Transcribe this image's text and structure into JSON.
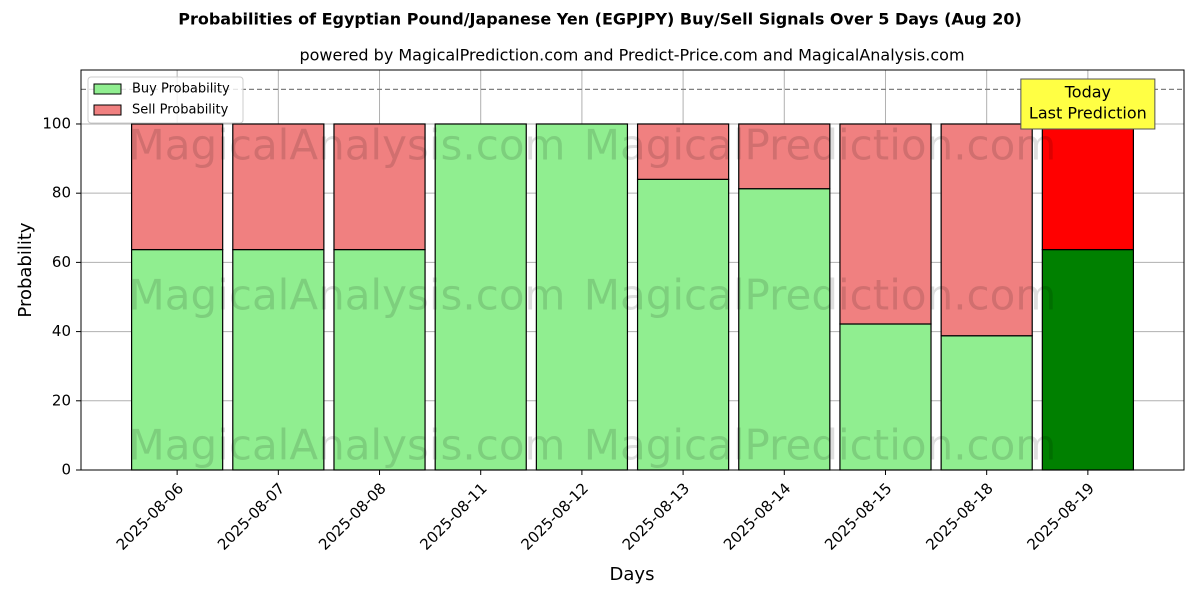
{
  "chart_data": {
    "type": "stacked_bar",
    "title": "Probabilities of Egyptian Pound/Japanese Yen (EGPJPY) Buy/Sell Signals Over 5 Days (Aug 20)",
    "subtitle": "powered by MagicalPrediction.com and Predict-Price.com and MagicalAnalysis.com",
    "xlabel": "Days",
    "ylabel": "Probability",
    "categories": [
      "2025-08-06",
      "2025-08-07",
      "2025-08-08",
      "2025-08-11",
      "2025-08-12",
      "2025-08-13",
      "2025-08-14",
      "2025-08-15",
      "2025-08-18",
      "2025-08-19"
    ],
    "series": [
      {
        "name": "Buy Probability",
        "color": "#90ee90",
        "values": [
          63.7,
          63.7,
          63.7,
          100,
          100,
          84,
          81.3,
          42.2,
          38.8,
          63.7
        ]
      },
      {
        "name": "Sell Probability",
        "color": "#f08080",
        "values": [
          36.3,
          36.3,
          36.3,
          0,
          0,
          16,
          18.7,
          57.8,
          61.2,
          36.3
        ]
      }
    ],
    "highlight": {
      "index": 9,
      "colors": [
        "#008000",
        "#ff0000"
      ]
    },
    "annotation": [
      "Today",
      "Last Prediction"
    ],
    "reference_line": 110,
    "watermarks": [
      "MagicalAnalysis.com",
      "MagicalPrediction.com"
    ],
    "ylim": [
      0,
      115.6
    ],
    "yticks": [
      0,
      20,
      40,
      60,
      80,
      100
    ],
    "grid": true,
    "legend": "upper left"
  }
}
